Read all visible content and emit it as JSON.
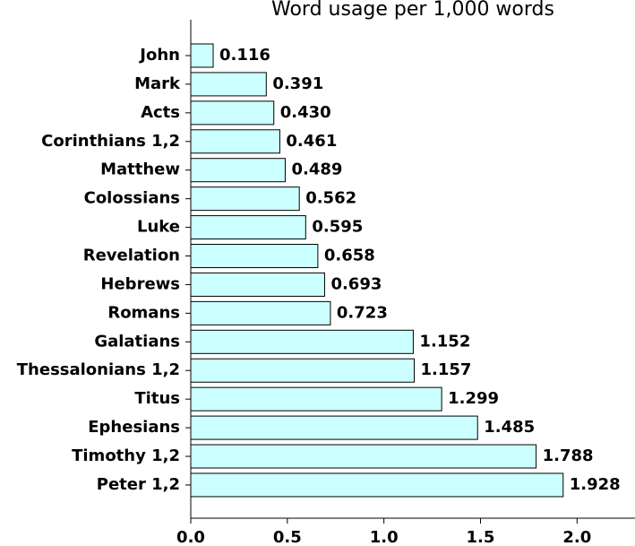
{
  "chart_data": {
    "type": "barh",
    "title": "Word usage per 1,000 words",
    "categories": [
      "John",
      "Mark",
      "Acts",
      "Corinthians 1,2",
      "Matthew",
      "Colossians",
      "Luke",
      "Revelation",
      "Hebrews",
      "Romans",
      "Galatians",
      "Thessalonians 1,2",
      "Titus",
      "Ephesians",
      "Timothy 1,2",
      "Peter 1,2"
    ],
    "values": [
      0.116,
      0.391,
      0.43,
      0.461,
      0.489,
      0.562,
      0.595,
      0.658,
      0.693,
      0.723,
      1.152,
      1.157,
      1.299,
      1.485,
      1.788,
      1.928
    ],
    "value_labels": [
      "0.116",
      "0.391",
      "0.430",
      "0.461",
      "0.489",
      "0.562",
      "0.595",
      "0.658",
      "0.693",
      "0.723",
      "1.152",
      "1.157",
      "1.299",
      "1.485",
      "1.788",
      "1.928"
    ],
    "color": "#ccffff",
    "xlim": [
      0,
      2.3
    ],
    "xticks": [
      {
        "value": 0,
        "label": "0.0"
      },
      {
        "value": 0.5,
        "label": "0.5"
      },
      {
        "value": 1,
        "label": "1.0"
      },
      {
        "value": 1.5,
        "label": "1.5"
      },
      {
        "value": 2,
        "label": "2.0"
      }
    ]
  }
}
